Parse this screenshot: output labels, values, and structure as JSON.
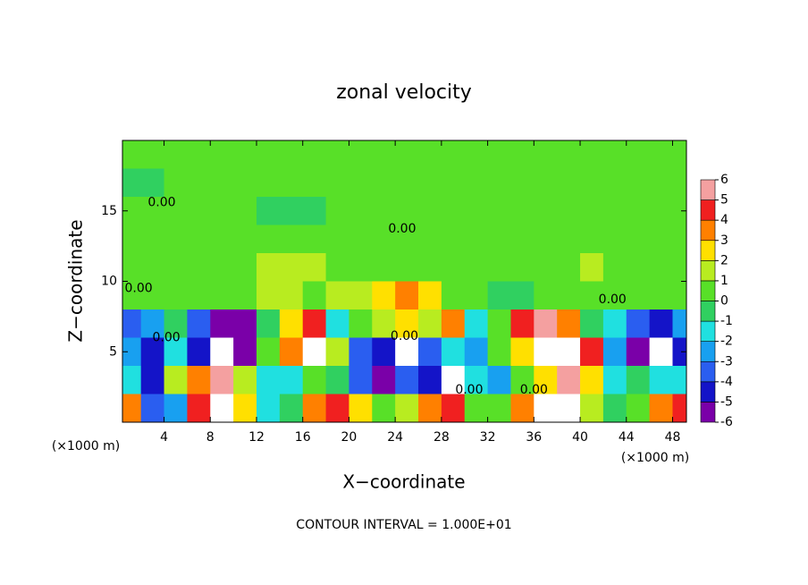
{
  "chart_data": {
    "type": "heatmap",
    "title": "zonal velocity",
    "x_label": "X−coordinate",
    "y_label": "Z−coordinate",
    "x_unit": "(×1000 m)",
    "footnote": "CONTOUR INTERVAL = 1.000E+01",
    "xlim": [
      0.4,
      49.2
    ],
    "ylim": [
      0,
      20
    ],
    "xticks": [
      4,
      8,
      12,
      16,
      20,
      24,
      28,
      32,
      36,
      40,
      44,
      48
    ],
    "yticks": [
      5,
      10,
      15
    ],
    "x": [
      1,
      3,
      5,
      7,
      9,
      11,
      13,
      15,
      17,
      19,
      21,
      23,
      25,
      27,
      29,
      31,
      33,
      35,
      37,
      39,
      41,
      43,
      45,
      47,
      49
    ],
    "z": [
      19,
      17,
      15,
      13,
      11,
      9,
      7,
      5,
      3,
      1
    ],
    "values": [
      [
        0.6,
        0.5,
        0.5,
        0.5,
        0.5,
        0.5,
        0.5,
        0.5,
        0.5,
        0.5,
        0.5,
        0.5,
        0.5,
        0.6,
        0.6,
        0.6,
        0.6,
        0.6,
        0.6,
        0.6,
        0.6,
        0.6,
        0.6,
        0.6,
        0.6
      ],
      [
        -0.2,
        -0.2,
        0.4,
        0.5,
        0.5,
        0.5,
        0.6,
        0.6,
        0.6,
        0.6,
        0.5,
        0.5,
        0.5,
        0.5,
        0.5,
        0.5,
        0.5,
        0.5,
        0.5,
        0.5,
        0.6,
        0.6,
        0.7,
        0.6,
        0.6
      ],
      [
        0.3,
        0.3,
        0.3,
        0.5,
        0.5,
        0.3,
        -0.2,
        -0.2,
        -0.2,
        0.5,
        0.5,
        0.5,
        0.5,
        0.5,
        0.5,
        0.6,
        0.6,
        0.6,
        0.6,
        0.6,
        0.6,
        0.8,
        0.8,
        0.8,
        0.6
      ],
      [
        0.6,
        0.6,
        0.6,
        0.6,
        0.6,
        0.6,
        0.6,
        0.6,
        0.6,
        0.6,
        0.6,
        0.6,
        0.6,
        0.6,
        0.6,
        0.6,
        0.6,
        0.6,
        0.7,
        0.8,
        0.9,
        0.9,
        0.9,
        0.8,
        0.7
      ],
      [
        0.8,
        0.8,
        0.8,
        0.8,
        0.8,
        0.9,
        1.2,
        1.2,
        1.2,
        0.9,
        0.8,
        0.8,
        0.6,
        0.6,
        0.8,
        0.8,
        0.8,
        0.8,
        0.8,
        0.9,
        1.2,
        0.9,
        0.8,
        0.8,
        0.8
      ],
      [
        0.3,
        0.5,
        0.8,
        0.8,
        0.8,
        0.9,
        1.5,
        1.2,
        1,
        1.5,
        2,
        3,
        4,
        3,
        0.5,
        0.2,
        -0.3,
        -0.5,
        0.5,
        0.3,
        0.5,
        0.8,
        0.6,
        0.5,
        0.5
      ],
      [
        -3,
        -2,
        -0.5,
        -3,
        -5,
        -5,
        -0.5,
        3,
        5,
        -1,
        1,
        2,
        3,
        2,
        4,
        -1,
        0.5,
        5,
        6,
        4,
        -0.5,
        -1,
        -3,
        -4,
        -2
      ],
      [
        -2,
        -4,
        -1,
        -4,
        -7,
        -5,
        0.5,
        4,
        7,
        2,
        -3,
        -4,
        -7,
        -3,
        -1,
        -2,
        0.5,
        3,
        7,
        7,
        5,
        -2,
        -5,
        -7,
        -4
      ],
      [
        -1,
        -4,
        2,
        4,
        6,
        2,
        -1,
        -1,
        0.5,
        -0.5,
        -3,
        -5,
        -3,
        -4,
        -7,
        -1,
        -2,
        1,
        3,
        6,
        3,
        -1,
        -0.5,
        -1,
        -1
      ],
      [
        4,
        -3,
        -2,
        5,
        7,
        3,
        -1,
        -0.5,
        4,
        5,
        3,
        1,
        2,
        4,
        5,
        1,
        0.5,
        4,
        7,
        8,
        2,
        -0.5,
        1,
        4,
        5
      ]
    ],
    "colorbar": {
      "levels": [
        -6,
        -5,
        -4,
        -3,
        -2,
        -1,
        0,
        1,
        2,
        3,
        4,
        5,
        6
      ],
      "colors": [
        "#7a00a8",
        "#1414c8",
        "#2a5ef0",
        "#18a0f0",
        "#20e0e0",
        "#30d060",
        "#58e028",
        "#b8ec20",
        "#ffe000",
        "#ff8000",
        "#f02020",
        "#f4a0a0"
      ]
    },
    "contour_labels": [
      {
        "text": "0.00",
        "x": 3.8,
        "z": 15.6
      },
      {
        "text": "0.00",
        "x": 24.6,
        "z": 13.7
      },
      {
        "text": "0.00",
        "x": 1.8,
        "z": 9.5
      },
      {
        "text": "0.00",
        "x": 4.2,
        "z": 6
      },
      {
        "text": "0.00",
        "x": 24.8,
        "z": 6.1
      },
      {
        "text": "0.00",
        "x": 30.4,
        "z": 2.3
      },
      {
        "text": "0.00",
        "x": 36,
        "z": 2.3
      },
      {
        "text": "0.00",
        "x": 42.8,
        "z": 8.7
      }
    ]
  }
}
